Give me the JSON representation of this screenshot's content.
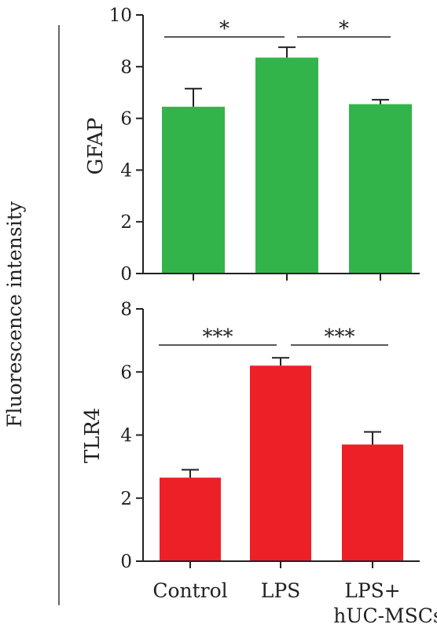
{
  "figure": {
    "shared_ylabel": "Fluorescence intensity"
  },
  "chart_data": [
    {
      "type": "bar",
      "title": "",
      "xlabel": "",
      "ylabel": "GFAP",
      "categories": [
        "Control",
        "LPS",
        "LPS+\nhUC-MSCs"
      ],
      "values": [
        6.45,
        8.35,
        6.55
      ],
      "error": [
        0.7,
        0.4,
        0.17
      ],
      "ylim": [
        0,
        10
      ],
      "yticks": [
        0,
        2,
        4,
        6,
        8,
        10
      ],
      "color": "#33b44a",
      "show_xtick_labels": false,
      "significance": [
        {
          "from": 0,
          "to": 1,
          "label": "*"
        },
        {
          "from": 1,
          "to": 2,
          "label": "*"
        }
      ],
      "grid": false
    },
    {
      "type": "bar",
      "title": "",
      "xlabel": "",
      "ylabel": "TLR4",
      "categories": [
        "Control",
        "LPS",
        "LPS+\nhUC-MSCs"
      ],
      "values": [
        2.65,
        6.2,
        3.7
      ],
      "error": [
        0.25,
        0.25,
        0.4
      ],
      "ylim": [
        0,
        8
      ],
      "yticks": [
        0,
        2,
        4,
        6,
        8
      ],
      "color": "#ee2027",
      "show_xtick_labels": true,
      "significance": [
        {
          "from": 0,
          "to": 1,
          "label": "***"
        },
        {
          "from": 1,
          "to": 2,
          "label": "***"
        }
      ],
      "grid": false
    }
  ]
}
